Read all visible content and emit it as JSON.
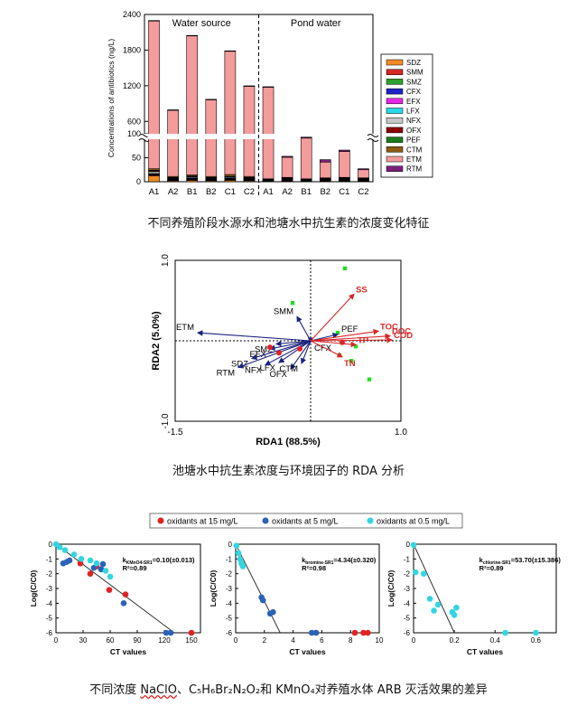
{
  "captions": {
    "fig1": "不同养殖阶段水源水和池塘水中抗生素的浓度变化特征",
    "fig2": "池塘水中抗生素浓度与环境因子的 RDA 分析",
    "fig3_a": "不同浓度 ",
    "fig3_b": "NaClO",
    "fig3_c": "、C₅H₆Br₂N₂O₂和 KMnO₄对养殖水体 ARB 灭活效果的差异"
  },
  "colors": {
    "SDZ": "#f08a24",
    "SMM": "#d62728",
    "SMZ": "#2ca02c",
    "CFX": "#1f22c8",
    "EFX": "#e526e5",
    "LFX": "#28d9e8",
    "NFX": "#c7c7c7",
    "OFX": "#8b0000",
    "PEF": "#1b7a1b",
    "CTM": "#8b5a14",
    "ETM": "#f49b9b",
    "RTM": "#7b1f7b",
    "rda_antibiotic": "#1a237e",
    "rda_env": "#d62728",
    "rda_site": "#22dd22",
    "ox15": "#e02222",
    "ox5": "#2a62b8",
    "ox05": "#33d6e0"
  },
  "chart_data": [
    {
      "type": "bar",
      "stacked": true,
      "ylabel": "Concentrations of antibiotics (ng/L)",
      "group_labels": [
        "Water source",
        "Pond water"
      ],
      "categories": [
        "A1",
        "A2",
        "B1",
        "B2",
        "C1",
        "C2",
        "A1",
        "A2",
        "B1",
        "B2",
        "C1",
        "C2"
      ],
      "y_ticks_upper": [
        "600",
        "1200",
        "1800",
        "2400"
      ],
      "y_ticks_lower": [
        "0",
        "50",
        "100"
      ],
      "axis_break": [
        100,
        300
      ],
      "legend_placement": "right",
      "legend": [
        "SDZ",
        "SMM",
        "SMZ",
        "CFX",
        "EFX",
        "LFX",
        "NFX",
        "OFX",
        "PEF",
        "CTM",
        "ETM",
        "RTM"
      ],
      "series": [
        {
          "name": "SDZ",
          "values": [
            12,
            2,
            3,
            2,
            3,
            2,
            1,
            1,
            1,
            1,
            1,
            1
          ]
        },
        {
          "name": "SMM",
          "values": [
            2,
            1,
            1,
            1,
            1,
            1,
            1,
            1,
            1,
            1,
            1,
            1
          ]
        },
        {
          "name": "SMZ",
          "values": [
            1,
            1,
            1,
            1,
            1,
            1,
            0,
            1,
            0,
            1,
            1,
            1
          ]
        },
        {
          "name": "CFX",
          "values": [
            1,
            1,
            1,
            1,
            1,
            1,
            0,
            0,
            0,
            0,
            0,
            0
          ]
        },
        {
          "name": "EFX",
          "values": [
            0,
            0,
            1,
            0,
            0,
            0,
            0,
            1,
            0,
            0,
            1,
            0
          ]
        },
        {
          "name": "LFX",
          "values": [
            1,
            1,
            1,
            1,
            1,
            1,
            0,
            1,
            0,
            1,
            1,
            1
          ]
        },
        {
          "name": "NFX",
          "values": [
            4,
            1,
            2,
            1,
            2,
            1,
            1,
            1,
            1,
            1,
            1,
            1
          ]
        },
        {
          "name": "OFX",
          "values": [
            2,
            1,
            1,
            1,
            1,
            1,
            1,
            1,
            1,
            1,
            1,
            1
          ]
        },
        {
          "name": "PEF",
          "values": [
            1,
            1,
            1,
            1,
            1,
            1,
            1,
            1,
            1,
            1,
            1,
            1
          ]
        },
        {
          "name": "CTM",
          "values": [
            3,
            2,
            2,
            2,
            4,
            2,
            1,
            1,
            1,
            1,
            1,
            1
          ]
        },
        {
          "name": "ETM",
          "values": [
            2268,
            781,
            2030,
            958,
            1770,
            1185,
            1175,
            42,
            85,
            33,
            54,
            17
          ]
        },
        {
          "name": "RTM",
          "values": [
            3,
            2,
            3,
            2,
            3,
            2,
            2,
            2,
            2,
            5,
            3,
            2
          ]
        }
      ],
      "totals": [
        2300,
        795,
        2048,
        972,
        1790,
        1200,
        1185,
        54,
        95,
        48,
        67,
        30
      ]
    },
    {
      "type": "scatter",
      "subtype": "rda_biplot",
      "xlabel": "RDA1 (88.5%)",
      "ylabel": "RDA2 (5.0%)",
      "xlim": [
        -1.5,
        1.0
      ],
      "ylim": [
        -1.0,
        1.0
      ],
      "x_ticks": [
        "-1.5",
        "1.0"
      ],
      "y_ticks": [
        "1.0",
        "-1.0"
      ],
      "antibiotic_vectors": [
        {
          "name": "ETM",
          "x": -1.25,
          "y": 0.1
        },
        {
          "name": "SMM",
          "x": -0.15,
          "y": 0.3
        },
        {
          "name": "SMZ",
          "x": -0.38,
          "y": -0.04
        },
        {
          "name": "EFX",
          "x": -0.45,
          "y": -0.1
        },
        {
          "name": "SDZ",
          "x": -0.65,
          "y": -0.22
        },
        {
          "name": "RTM",
          "x": -0.8,
          "y": -0.33
        },
        {
          "name": "LFX",
          "x": -0.35,
          "y": -0.27
        },
        {
          "name": "NFX",
          "x": -0.5,
          "y": -0.3
        },
        {
          "name": "OFX",
          "x": -0.22,
          "y": -0.35
        },
        {
          "name": "CTM",
          "x": -0.1,
          "y": -0.28
        },
        {
          "name": "CFX",
          "x": 0.0,
          "y": -0.02
        },
        {
          "name": "PEF",
          "x": 0.3,
          "y": 0.08
        }
      ],
      "env_vectors": [
        {
          "name": "SS",
          "x": 0.48,
          "y": 0.58
        },
        {
          "name": "TOC",
          "x": 0.75,
          "y": 0.12
        },
        {
          "name": "DOC",
          "x": 0.88,
          "y": 0.06
        },
        {
          "name": "COD",
          "x": 0.9,
          "y": 0.01
        },
        {
          "name": "TP",
          "x": 0.5,
          "y": -0.05
        },
        {
          "name": "TN",
          "x": 0.35,
          "y": -0.2
        }
      ],
      "sites": [
        {
          "x": 0.38,
          "y": 0.9
        },
        {
          "x": -0.2,
          "y": 0.47
        },
        {
          "x": 0.3,
          "y": 0.1
        },
        {
          "x": 0.5,
          "y": -0.07
        },
        {
          "x": 0.45,
          "y": -0.25
        },
        {
          "x": 0.65,
          "y": -0.48
        },
        {
          "x": 0.32,
          "y": -0.18
        }
      ],
      "centroids": [
        {
          "x": -0.45,
          "y": -0.08
        },
        {
          "x": -0.35,
          "y": -0.15
        },
        {
          "x": -0.12,
          "y": -0.1
        },
        {
          "x": 0.35,
          "y": -0.02
        }
      ]
    },
    [
      {
        "type": "scatter",
        "xlabel": "CT values",
        "ylabel": "Log(C/C0)",
        "xlim": [
          0,
          160
        ],
        "ylim": [
          -6,
          0
        ],
        "x_ticks": [
          "0",
          "30",
          "60",
          "90",
          "120",
          "150"
        ],
        "y_ticks": [
          "0",
          "-1",
          "-2",
          "-3",
          "-4",
          "-5",
          "-6"
        ],
        "annotation_k": "k",
        "annotation_sub": "KMnO4-SR1",
        "annotation_val": "=0.10(±0.013)",
        "annotation_r2": "R²=0.89",
        "fit": {
          "x": [
            0,
            131
          ],
          "y": [
            0,
            -6
          ]
        },
        "series": [
          {
            "name": "oxidants at 15 mg/L",
            "color_key": "ox15",
            "x": [
              27,
              38,
              45,
              59,
              77,
              150
            ],
            "y": [
              -1.3,
              -2.0,
              -1.5,
              -3.1,
              -3.4,
              -6.0
            ]
          },
          {
            "name": "oxidants at 5 mg/L",
            "color_key": "ox5",
            "x": [
              8,
              12,
              15,
              42,
              50,
              52,
              75,
              122,
              127
            ],
            "y": [
              -1.3,
              -1.2,
              -1.1,
              -1.6,
              -1.7,
              -1.35,
              -4.0,
              -6.0,
              -6.0
            ]
          },
          {
            "name": "oxidants at 0.5 mg/L",
            "color_key": "ox05",
            "x": [
              0,
              4,
              10,
              20,
              28,
              38,
              45,
              55,
              60
            ],
            "y": [
              0,
              -0.2,
              -0.4,
              -0.7,
              -1.0,
              -1.1,
              -1.3,
              -1.8,
              -2.2
            ]
          }
        ]
      },
      {
        "type": "scatter",
        "xlabel": "CT values",
        "ylabel": "Log(C/C0)",
        "xlim": [
          0,
          10
        ],
        "ylim": [
          -6,
          0
        ],
        "x_ticks": [
          "0",
          "2",
          "4",
          "6",
          "8",
          "10"
        ],
        "y_ticks": [
          "0",
          "-1",
          "-2",
          "-3",
          "-4",
          "-5",
          "-6"
        ],
        "annotation_k": "k",
        "annotation_sub": "bromine-SR1",
        "annotation_val": "=4.34(±0.320)",
        "annotation_r2": "R²=0.98",
        "fit": {
          "x": [
            0,
            3.1
          ],
          "y": [
            0,
            -6
          ]
        },
        "series": [
          {
            "name": "oxidants at 15 mg/L",
            "color_key": "ox15",
            "x": [
              8.3,
              8.9,
              9.2
            ],
            "y": [
              -6.0,
              -6.0,
              -6.0
            ]
          },
          {
            "name": "oxidants at 5 mg/L",
            "color_key": "ox5",
            "x": [
              1.8,
              1.9,
              2.4,
              2.6,
              5.3,
              5.6
            ],
            "y": [
              -3.6,
              -3.8,
              -4.7,
              -4.6,
              -6.0,
              -6.0
            ]
          },
          {
            "name": "oxidants at 0.5 mg/L",
            "color_key": "ox05",
            "x": [
              0.05,
              0.2,
              0.3,
              0.4,
              0.5
            ],
            "y": [
              -0.1,
              -0.6,
              -1.0,
              -1.3,
              -1.5
            ]
          }
        ]
      },
      {
        "type": "scatter",
        "xlabel": "CT values",
        "ylabel": "Log(C/C0)",
        "xlim": [
          0,
          0.7
        ],
        "ylim": [
          -6,
          0
        ],
        "x_ticks": [
          "0",
          "0.2",
          "0.4",
          "0.6"
        ],
        "y_ticks": [
          "0",
          "-1",
          "-2",
          "-3",
          "-4",
          "-5",
          "-6"
        ],
        "annotation_k": "k",
        "annotation_sub": "chlorine-SR1",
        "annotation_val": "=53.70(±15.386)",
        "annotation_r2": "R²=0.89",
        "fit": {
          "x": [
            0,
            0.2
          ],
          "y": [
            0,
            -6
          ]
        },
        "series": [
          {
            "name": "oxidants at 15 mg/L",
            "color_key": "ox15",
            "x": [],
            "y": []
          },
          {
            "name": "oxidants at 5 mg/L",
            "color_key": "ox5",
            "x": [],
            "y": []
          },
          {
            "name": "oxidants at 0.5 mg/L",
            "color_key": "ox05",
            "x": [
              0.0,
              0.01,
              0.05,
              0.08,
              0.1,
              0.12,
              0.19,
              0.2,
              0.21,
              0.45,
              0.6
            ],
            "y": [
              -0.05,
              -1.9,
              -2.0,
              -3.7,
              -4.5,
              -4.1,
              -4.6,
              -4.8,
              -4.3,
              -6.0,
              -6.0
            ]
          }
        ]
      }
    ]
  ]
}
